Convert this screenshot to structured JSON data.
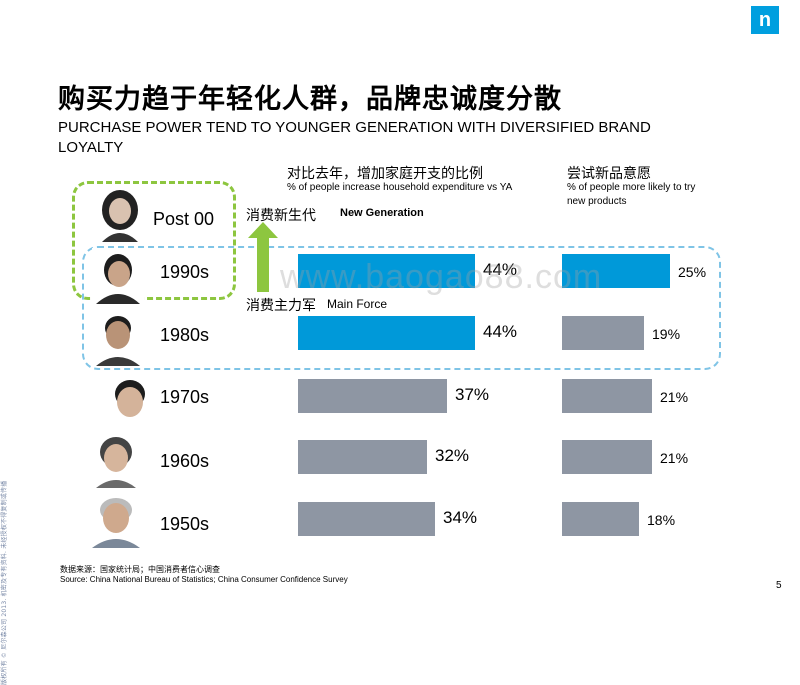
{
  "side_text": "版权所有 © 尼尔森公司 2013. 机密及专有资料. 未经授权不得复制或传播",
  "logo": "n",
  "title_cn": "购买力趋于年轻化人群，品牌忠诚度分散",
  "title_en": "PURCHASE POWER TEND TO YOUNGER GENERATION WITH DIVERSIFIED BRAND LOYALTY",
  "annotations": {
    "new_gen_cn": "消费新生代",
    "new_gen_en": "New Generation",
    "main_force_cn": "消费主力军",
    "main_force_en": "Main Force"
  },
  "watermark": "www.baogao88.com",
  "source_cn": "数据来源：国家统计局；中国消费者信心调查",
  "source_en": "Source: China National Bureau of Statistics; China Consumer Confidence Survey",
  "page_number": "5",
  "colors": {
    "blue": "#0099d9",
    "gray": "#8e96a3",
    "green": "#8dc63f"
  },
  "chart_data": [
    {
      "type": "bar",
      "orientation": "horizontal",
      "title": "对比去年，增加家庭开支的比例",
      "subtitle": "% of people increase household expenditure vs YA",
      "categories": [
        "Post 00",
        "1990s",
        "1980s",
        "1970s",
        "1960s",
        "1950s"
      ],
      "values": [
        null,
        44,
        44,
        37,
        32,
        34
      ],
      "labels": [
        "",
        "44%",
        "44%",
        "37%",
        "32%",
        "34%"
      ],
      "highlight": [
        "1990s",
        "1980s"
      ],
      "xlim": [
        0,
        60
      ]
    },
    {
      "type": "bar",
      "orientation": "horizontal",
      "title": "尝试新品意愿",
      "subtitle": "% of people more likely to try new products",
      "categories": [
        "Post 00",
        "1990s",
        "1980s",
        "1970s",
        "1960s",
        "1950s"
      ],
      "values": [
        null,
        25,
        19,
        21,
        21,
        18
      ],
      "labels": [
        "",
        "25%",
        "19%",
        "21%",
        "21%",
        "18%"
      ],
      "highlight": [
        "1990s"
      ],
      "xlim": [
        0,
        30
      ]
    }
  ]
}
